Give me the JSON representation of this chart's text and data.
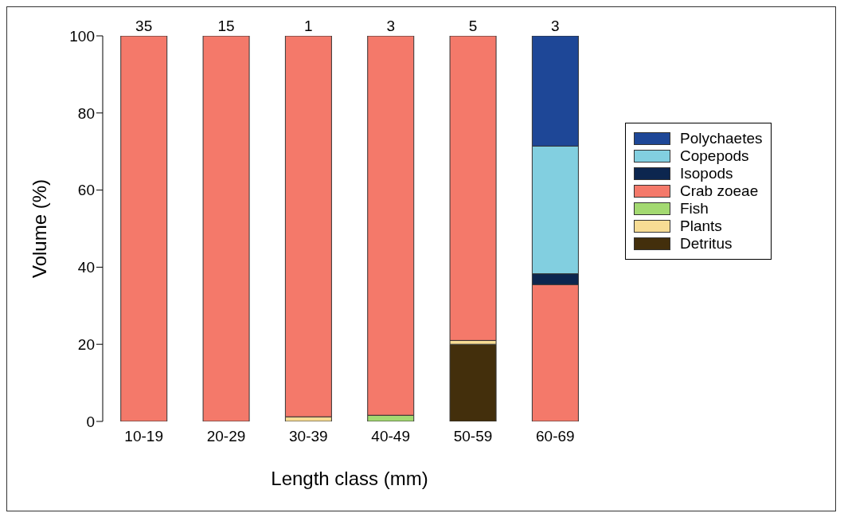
{
  "chart_data": {
    "type": "bar",
    "stacked": true,
    "xlabel": "Length class (mm)",
    "ylabel": "Volume (%)",
    "categories": [
      "10-19",
      "20-29",
      "30-39",
      "40-49",
      "50-59",
      "60-69"
    ],
    "series": [
      {
        "name": "Detritus",
        "color": "#432f0c",
        "values": [
          0,
          0,
          0,
          0,
          20,
          0
        ]
      },
      {
        "name": "Plants",
        "color": "#f7dc94",
        "values": [
          0,
          0,
          1.2,
          0,
          1,
          0
        ]
      },
      {
        "name": "Fish",
        "color": "#a3d971",
        "values": [
          0,
          0,
          0,
          1.6,
          0,
          0
        ]
      },
      {
        "name": "Crab zoeae",
        "color": "#f4796a",
        "values": [
          100,
          100,
          98.8,
          98.4,
          79,
          35.5
        ]
      },
      {
        "name": "Isopods",
        "color": "#0c264f",
        "values": [
          0,
          0,
          0,
          0,
          0,
          2.8
        ]
      },
      {
        "name": "Copepods",
        "color": "#82cfe0",
        "values": [
          0,
          0,
          0,
          0,
          0,
          33.1
        ]
      },
      {
        "name": "Polychaetes",
        "color": "#1e4797",
        "values": [
          0,
          0,
          0,
          0,
          0,
          28.6
        ]
      }
    ],
    "ylim": [
      0,
      100
    ],
    "yticks": [
      0,
      20,
      40,
      60,
      80,
      100
    ],
    "grid": false,
    "legend": "right",
    "annotations": [
      {
        "text": "35",
        "x": "10-19",
        "y": 100
      },
      {
        "text": "15",
        "x": "20-29",
        "y": 100
      },
      {
        "text": "1",
        "x": "30-39",
        "y": 100
      },
      {
        "text": "3",
        "x": "40-49",
        "y": 100
      },
      {
        "text": "5",
        "x": "50-59",
        "y": 100
      },
      {
        "text": "3",
        "x": "60-69",
        "y": 100
      }
    ]
  }
}
